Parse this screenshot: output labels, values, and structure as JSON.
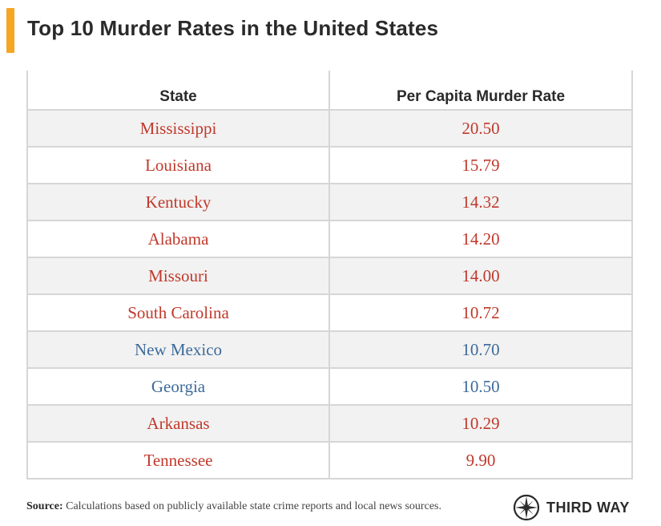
{
  "title": "Top 10 Murder Rates in the United States",
  "colors": {
    "accent_bar": "#f5a623",
    "red_state": "#c0392b",
    "blue_state": "#3d6a99"
  },
  "table": {
    "headers": [
      "State",
      "Per Capita Murder Rate"
    ],
    "rows": [
      {
        "state": "Mississippi",
        "rate": "20.50",
        "color": "#c0392b"
      },
      {
        "state": "Louisiana",
        "rate": "15.79",
        "color": "#c0392b"
      },
      {
        "state": "Kentucky",
        "rate": "14.32",
        "color": "#c0392b"
      },
      {
        "state": "Alabama",
        "rate": "14.20",
        "color": "#c0392b"
      },
      {
        "state": "Missouri",
        "rate": "14.00",
        "color": "#c0392b"
      },
      {
        "state": "South Carolina",
        "rate": "10.72",
        "color": "#c0392b"
      },
      {
        "state": "New Mexico",
        "rate": "10.70",
        "color": "#3d6a99"
      },
      {
        "state": "Georgia",
        "rate": "10.50",
        "color": "#3d6a99"
      },
      {
        "state": "Arkansas",
        "rate": "10.29",
        "color": "#c0392b"
      },
      {
        "state": "Tennessee",
        "rate": "9.90",
        "color": "#c0392b"
      }
    ]
  },
  "source": {
    "label": "Source:",
    "text": "Calculations based on publicly available state crime reports and local news sources."
  },
  "logo": {
    "text": "THIRD WAY",
    "icon": "compass-star-icon"
  }
}
